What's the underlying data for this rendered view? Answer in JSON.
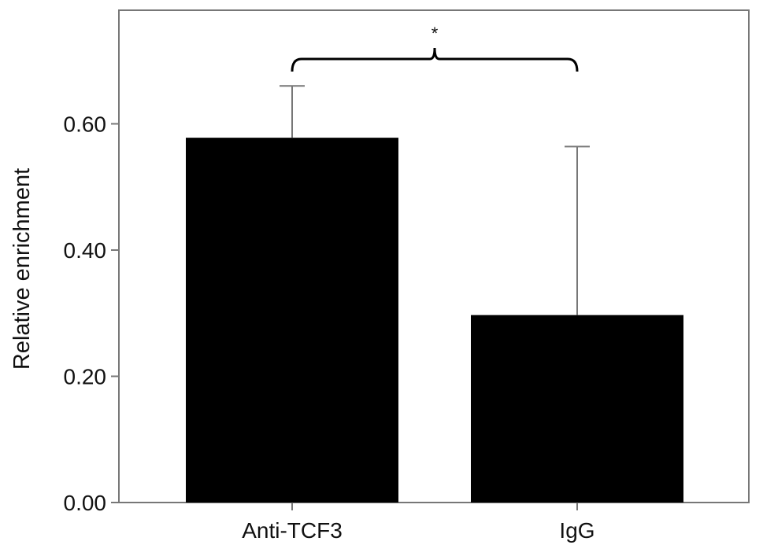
{
  "chart_data": {
    "type": "bar",
    "title": "",
    "xlabel": "",
    "ylabel": "Relative enrichment",
    "categories": [
      "Anti-TCF3",
      "IgG"
    ],
    "values": [
      0.578,
      0.297
    ],
    "error_upper": [
      0.66,
      0.564
    ],
    "ylim": [
      0,
      0.78
    ],
    "yticks": [
      0.0,
      0.2,
      0.4,
      0.6
    ],
    "ytick_labels": [
      "0.00",
      "0.20",
      "0.40",
      "0.60"
    ],
    "grid": false,
    "legend": "none",
    "bar_color": "#000000",
    "significance": {
      "between": [
        "Anti-TCF3",
        "IgG"
      ],
      "label": "*"
    }
  }
}
